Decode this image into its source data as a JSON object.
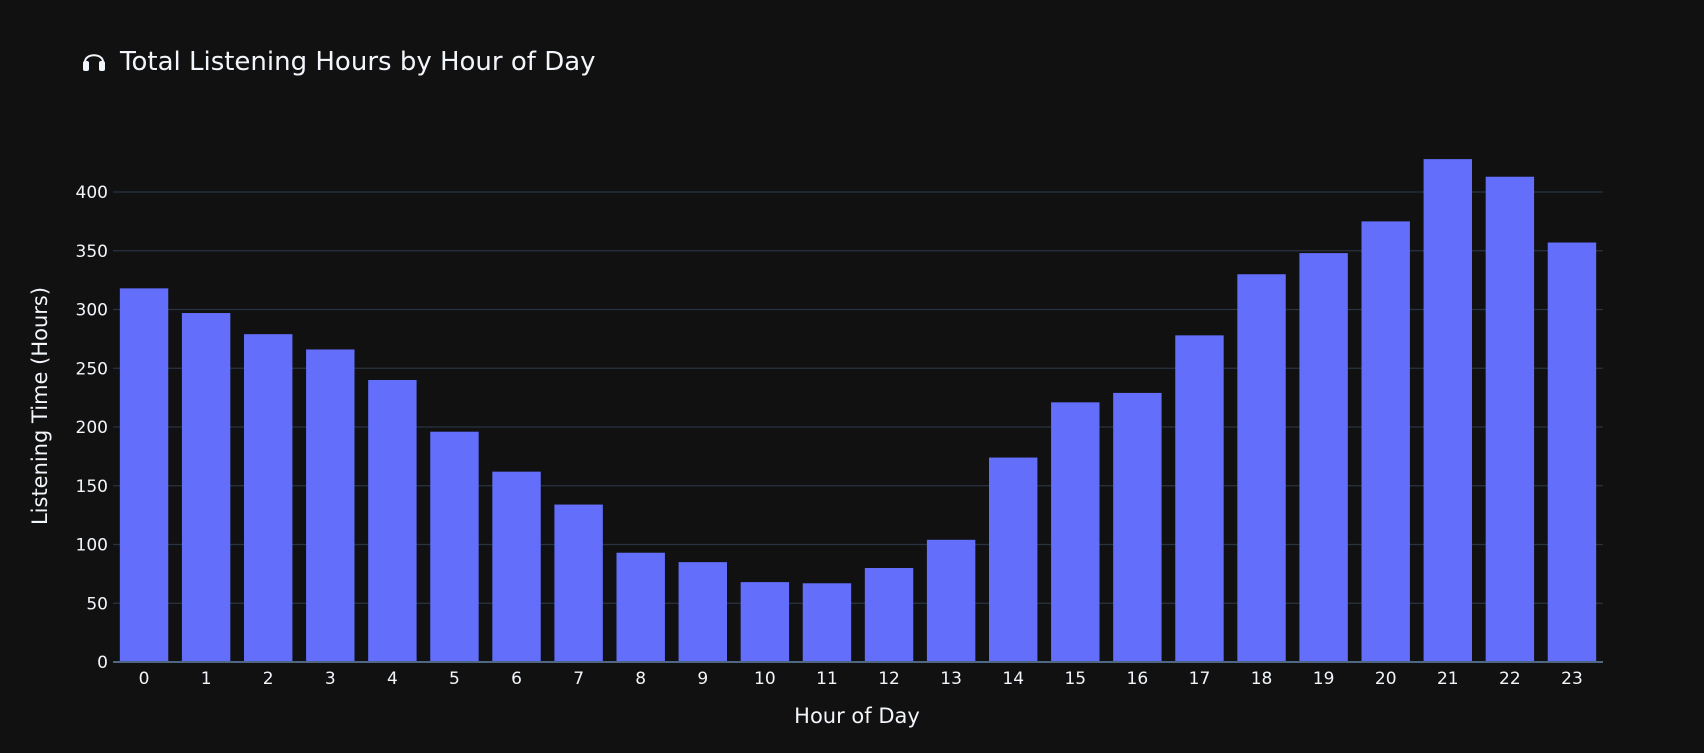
{
  "chart_data": {
    "type": "bar",
    "title_icon": "headphones-icon",
    "title": "Total Listening Hours by Hour of Day",
    "xlabel": "Hour of Day",
    "ylabel": "Listening Time (Hours)",
    "categories": [
      "0",
      "1",
      "2",
      "3",
      "4",
      "5",
      "6",
      "7",
      "8",
      "9",
      "10",
      "11",
      "12",
      "13",
      "14",
      "15",
      "16",
      "17",
      "18",
      "19",
      "20",
      "21",
      "22",
      "23"
    ],
    "values": [
      318,
      297,
      279,
      266,
      240,
      196,
      162,
      134,
      93,
      85,
      68,
      67,
      80,
      104,
      174,
      221,
      229,
      278,
      330,
      348,
      375,
      428,
      413,
      357
    ],
    "ylim": [
      0,
      440
    ],
    "yticks": [
      0,
      50,
      100,
      150,
      200,
      250,
      300,
      350,
      400
    ],
    "grid": true,
    "colors": {
      "bar": "#636EFA",
      "background": "#111111",
      "grid": "#283442",
      "text": "#F2F5FA"
    }
  }
}
